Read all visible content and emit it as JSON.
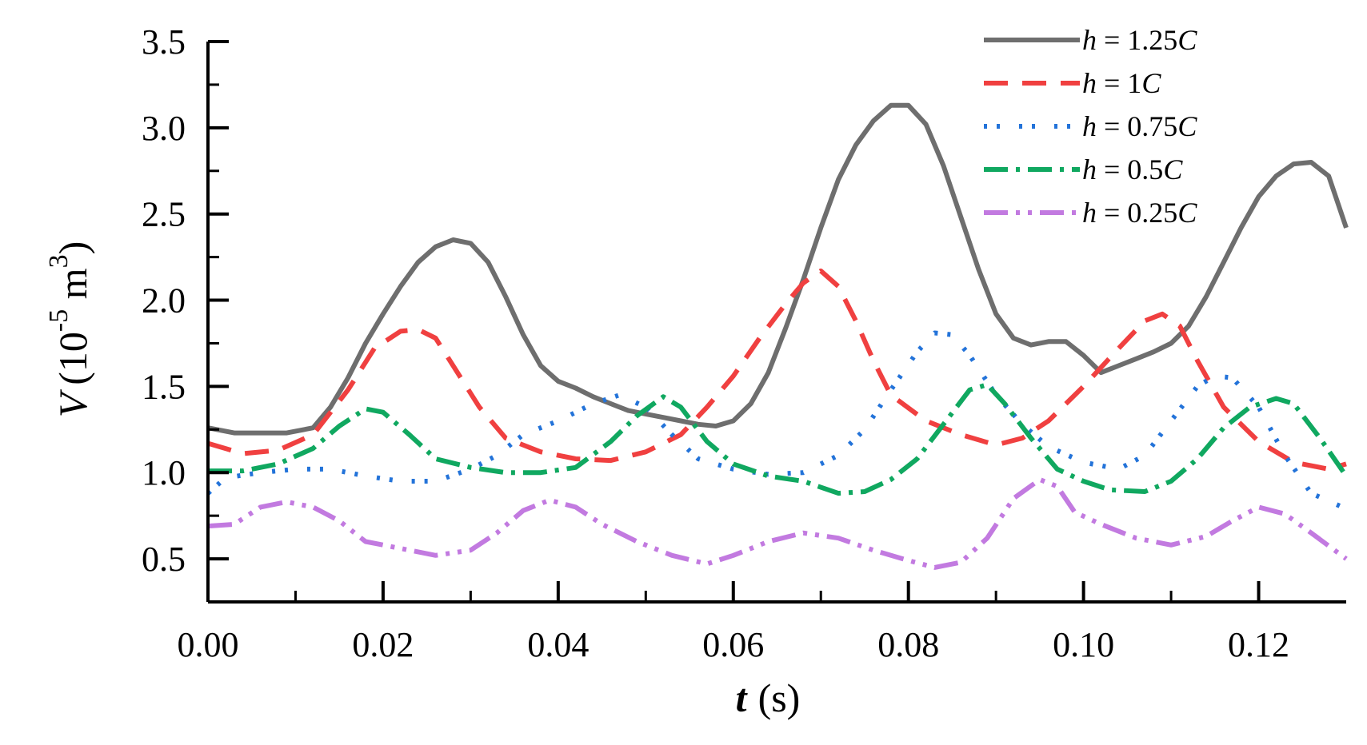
{
  "chart_data": {
    "type": "line",
    "xlabel": {
      "var": "t",
      "unit": "(s)"
    },
    "ylabel": {
      "var": "V",
      "open": "(10",
      "exp1": "-5",
      "mid": " m",
      "exp2": "3",
      "close": ")"
    },
    "xlim": [
      0,
      0.13
    ],
    "ylim": [
      0.25,
      3.5
    ],
    "xticks": [
      0,
      0.02,
      0.04,
      0.06,
      0.08,
      0.1,
      0.12
    ],
    "xtick_labels": [
      "0.00",
      "0.02",
      "0.04",
      "0.06",
      "0.08",
      "0.10",
      "0.12"
    ],
    "yticks": [
      0.5,
      1.0,
      1.5,
      2.0,
      2.5,
      3.0,
      3.5
    ],
    "ytick_labels": [
      "0.5",
      "1.0",
      "1.5",
      "2.0",
      "2.5",
      "3.0",
      "3.5"
    ],
    "legend": {
      "position": "top-right"
    },
    "series": [
      {
        "name": "h = 1.25C",
        "legend": {
          "var": "h",
          "eq": " = ",
          "num": "1.25",
          "sym": "C"
        },
        "color": "#6e6e6e",
        "dash": "solid",
        "points": [
          [
            0.0,
            1.26
          ],
          [
            0.003,
            1.23
          ],
          [
            0.009,
            1.23
          ],
          [
            0.012,
            1.26
          ],
          [
            0.014,
            1.38
          ],
          [
            0.016,
            1.55
          ],
          [
            0.018,
            1.75
          ],
          [
            0.02,
            1.92
          ],
          [
            0.022,
            2.08
          ],
          [
            0.024,
            2.22
          ],
          [
            0.026,
            2.31
          ],
          [
            0.028,
            2.35
          ],
          [
            0.03,
            2.33
          ],
          [
            0.032,
            2.22
          ],
          [
            0.034,
            2.02
          ],
          [
            0.036,
            1.8
          ],
          [
            0.038,
            1.62
          ],
          [
            0.04,
            1.53
          ],
          [
            0.042,
            1.49
          ],
          [
            0.044,
            1.44
          ],
          [
            0.046,
            1.4
          ],
          [
            0.048,
            1.36
          ],
          [
            0.05,
            1.34
          ],
          [
            0.052,
            1.32
          ],
          [
            0.054,
            1.3
          ],
          [
            0.056,
            1.28
          ],
          [
            0.058,
            1.27
          ],
          [
            0.06,
            1.3
          ],
          [
            0.062,
            1.4
          ],
          [
            0.064,
            1.58
          ],
          [
            0.066,
            1.84
          ],
          [
            0.068,
            2.12
          ],
          [
            0.07,
            2.42
          ],
          [
            0.072,
            2.7
          ],
          [
            0.074,
            2.9
          ],
          [
            0.076,
            3.04
          ],
          [
            0.078,
            3.13
          ],
          [
            0.08,
            3.13
          ],
          [
            0.082,
            3.02
          ],
          [
            0.084,
            2.78
          ],
          [
            0.086,
            2.48
          ],
          [
            0.088,
            2.18
          ],
          [
            0.09,
            1.92
          ],
          [
            0.092,
            1.78
          ],
          [
            0.094,
            1.74
          ],
          [
            0.096,
            1.76
          ],
          [
            0.098,
            1.76
          ],
          [
            0.1,
            1.68
          ],
          [
            0.102,
            1.58
          ],
          [
            0.104,
            1.62
          ],
          [
            0.106,
            1.66
          ],
          [
            0.108,
            1.7
          ],
          [
            0.11,
            1.75
          ],
          [
            0.112,
            1.85
          ],
          [
            0.114,
            2.02
          ],
          [
            0.116,
            2.22
          ],
          [
            0.118,
            2.42
          ],
          [
            0.12,
            2.6
          ],
          [
            0.122,
            2.72
          ],
          [
            0.124,
            2.79
          ],
          [
            0.126,
            2.8
          ],
          [
            0.128,
            2.72
          ],
          [
            0.13,
            2.42
          ]
        ]
      },
      {
        "name": "h = 1C",
        "legend": {
          "var": "h",
          "eq": " = ",
          "num": "1",
          "sym": "C"
        },
        "color": "#f04040",
        "dash": "30 18",
        "points": [
          [
            0.0,
            1.17
          ],
          [
            0.004,
            1.11
          ],
          [
            0.008,
            1.13
          ],
          [
            0.012,
            1.22
          ],
          [
            0.016,
            1.48
          ],
          [
            0.019,
            1.72
          ],
          [
            0.022,
            1.82
          ],
          [
            0.024,
            1.83
          ],
          [
            0.026,
            1.78
          ],
          [
            0.028,
            1.62
          ],
          [
            0.031,
            1.38
          ],
          [
            0.034,
            1.2
          ],
          [
            0.038,
            1.12
          ],
          [
            0.042,
            1.08
          ],
          [
            0.046,
            1.07
          ],
          [
            0.05,
            1.12
          ],
          [
            0.054,
            1.22
          ],
          [
            0.057,
            1.38
          ],
          [
            0.06,
            1.56
          ],
          [
            0.063,
            1.78
          ],
          [
            0.066,
            1.98
          ],
          [
            0.068,
            2.1
          ],
          [
            0.07,
            2.17
          ],
          [
            0.072,
            2.08
          ],
          [
            0.074,
            1.88
          ],
          [
            0.076,
            1.65
          ],
          [
            0.078,
            1.45
          ],
          [
            0.082,
            1.3
          ],
          [
            0.086,
            1.22
          ],
          [
            0.09,
            1.16
          ],
          [
            0.093,
            1.2
          ],
          [
            0.096,
            1.3
          ],
          [
            0.1,
            1.5
          ],
          [
            0.104,
            1.72
          ],
          [
            0.107,
            1.88
          ],
          [
            0.109,
            1.92
          ],
          [
            0.111,
            1.85
          ],
          [
            0.113,
            1.65
          ],
          [
            0.116,
            1.38
          ],
          [
            0.12,
            1.18
          ],
          [
            0.124,
            1.06
          ],
          [
            0.128,
            1.02
          ],
          [
            0.13,
            1.05
          ]
        ]
      },
      {
        "name": "h = 0.75C",
        "legend": {
          "var": "h",
          "eq": " = ",
          "num": "0.75",
          "sym": "C"
        },
        "color": "#2373d9",
        "dash": "4 12 4 24",
        "points": [
          [
            0.0,
            0.88
          ],
          [
            0.002,
            0.97
          ],
          [
            0.006,
            1.0
          ],
          [
            0.01,
            1.02
          ],
          [
            0.014,
            1.02
          ],
          [
            0.018,
            0.98
          ],
          [
            0.022,
            0.95
          ],
          [
            0.026,
            0.95
          ],
          [
            0.03,
            1.02
          ],
          [
            0.033,
            1.1
          ],
          [
            0.036,
            1.22
          ],
          [
            0.04,
            1.3
          ],
          [
            0.044,
            1.4
          ],
          [
            0.047,
            1.45
          ],
          [
            0.05,
            1.38
          ],
          [
            0.053,
            1.22
          ],
          [
            0.056,
            1.08
          ],
          [
            0.06,
            1.02
          ],
          [
            0.064,
            0.99
          ],
          [
            0.068,
            1.0
          ],
          [
            0.072,
            1.1
          ],
          [
            0.075,
            1.25
          ],
          [
            0.078,
            1.48
          ],
          [
            0.081,
            1.7
          ],
          [
            0.083,
            1.81
          ],
          [
            0.085,
            1.8
          ],
          [
            0.087,
            1.68
          ],
          [
            0.09,
            1.45
          ],
          [
            0.093,
            1.28
          ],
          [
            0.096,
            1.15
          ],
          [
            0.1,
            1.06
          ],
          [
            0.104,
            1.02
          ],
          [
            0.107,
            1.1
          ],
          [
            0.11,
            1.3
          ],
          [
            0.113,
            1.5
          ],
          [
            0.115,
            1.56
          ],
          [
            0.117,
            1.55
          ],
          [
            0.12,
            1.38
          ],
          [
            0.123,
            1.1
          ],
          [
            0.126,
            0.88
          ],
          [
            0.13,
            0.79
          ]
        ]
      },
      {
        "name": "h = 0.5C",
        "legend": {
          "var": "h",
          "eq": " = ",
          "num": "0.5",
          "sym": "C"
        },
        "color": "#10a860",
        "dash": "30 10 5 10",
        "points": [
          [
            0.0,
            1.01
          ],
          [
            0.004,
            1.01
          ],
          [
            0.008,
            1.05
          ],
          [
            0.012,
            1.14
          ],
          [
            0.015,
            1.27
          ],
          [
            0.018,
            1.37
          ],
          [
            0.02,
            1.35
          ],
          [
            0.023,
            1.22
          ],
          [
            0.026,
            1.08
          ],
          [
            0.03,
            1.03
          ],
          [
            0.034,
            1.0
          ],
          [
            0.038,
            1.0
          ],
          [
            0.042,
            1.03
          ],
          [
            0.046,
            1.18
          ],
          [
            0.049,
            1.33
          ],
          [
            0.052,
            1.44
          ],
          [
            0.054,
            1.38
          ],
          [
            0.057,
            1.18
          ],
          [
            0.06,
            1.05
          ],
          [
            0.064,
            0.98
          ],
          [
            0.068,
            0.95
          ],
          [
            0.072,
            0.88
          ],
          [
            0.075,
            0.89
          ],
          [
            0.078,
            0.96
          ],
          [
            0.081,
            1.08
          ],
          [
            0.084,
            1.28
          ],
          [
            0.087,
            1.48
          ],
          [
            0.089,
            1.51
          ],
          [
            0.091,
            1.4
          ],
          [
            0.094,
            1.2
          ],
          [
            0.097,
            1.02
          ],
          [
            0.1,
            0.95
          ],
          [
            0.103,
            0.9
          ],
          [
            0.107,
            0.89
          ],
          [
            0.11,
            0.95
          ],
          [
            0.113,
            1.08
          ],
          [
            0.116,
            1.26
          ],
          [
            0.119,
            1.38
          ],
          [
            0.122,
            1.43
          ],
          [
            0.124,
            1.4
          ],
          [
            0.127,
            1.2
          ],
          [
            0.13,
            0.98
          ]
        ]
      },
      {
        "name": "h = 0.25C",
        "legend": {
          "var": "h",
          "eq": " = ",
          "num": "0.25",
          "sym": "C"
        },
        "color": "#c27ae0",
        "dash": "30 10 5 10 5 10",
        "points": [
          [
            0.0,
            0.69
          ],
          [
            0.003,
            0.7
          ],
          [
            0.006,
            0.8
          ],
          [
            0.009,
            0.83
          ],
          [
            0.012,
            0.8
          ],
          [
            0.015,
            0.72
          ],
          [
            0.018,
            0.6
          ],
          [
            0.022,
            0.56
          ],
          [
            0.026,
            0.52
          ],
          [
            0.03,
            0.55
          ],
          [
            0.033,
            0.65
          ],
          [
            0.036,
            0.78
          ],
          [
            0.039,
            0.84
          ],
          [
            0.042,
            0.8
          ],
          [
            0.045,
            0.7
          ],
          [
            0.049,
            0.6
          ],
          [
            0.053,
            0.52
          ],
          [
            0.057,
            0.47
          ],
          [
            0.06,
            0.52
          ],
          [
            0.064,
            0.6
          ],
          [
            0.068,
            0.65
          ],
          [
            0.072,
            0.62
          ],
          [
            0.076,
            0.55
          ],
          [
            0.08,
            0.49
          ],
          [
            0.083,
            0.45
          ],
          [
            0.086,
            0.48
          ],
          [
            0.089,
            0.62
          ],
          [
            0.092,
            0.85
          ],
          [
            0.095,
            0.96
          ],
          [
            0.097,
            0.92
          ],
          [
            0.099,
            0.77
          ],
          [
            0.102,
            0.7
          ],
          [
            0.106,
            0.62
          ],
          [
            0.11,
            0.58
          ],
          [
            0.114,
            0.63
          ],
          [
            0.117,
            0.72
          ],
          [
            0.12,
            0.8
          ],
          [
            0.123,
            0.76
          ],
          [
            0.126,
            0.65
          ],
          [
            0.13,
            0.5
          ]
        ]
      }
    ]
  }
}
